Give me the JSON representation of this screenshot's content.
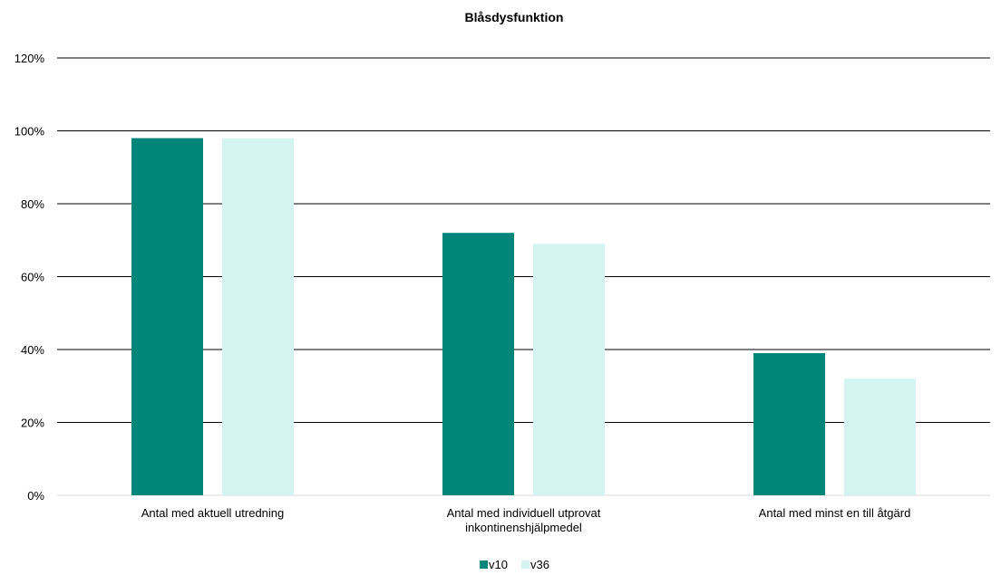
{
  "chart_data": {
    "type": "bar",
    "title": "Blåsdysfunktion",
    "categories": [
      [
        "Antal med aktuell utredning"
      ],
      [
        "Antal med individuell utprovat",
        "inkontinenshjälpmedel"
      ],
      [
        "Antal med minst en till åtgärd"
      ]
    ],
    "series": [
      {
        "name": "v10",
        "values": [
          98,
          72,
          39
        ],
        "color": "#00857a"
      },
      {
        "name": "v36",
        "values": [
          98,
          69,
          32
        ],
        "color": "#d4f4f1"
      }
    ],
    "ylim": [
      0,
      120
    ],
    "yticks": [
      0,
      20,
      40,
      60,
      80,
      100,
      120
    ],
    "ytick_format": "percent",
    "grid": true,
    "legend_position": "bottom"
  }
}
